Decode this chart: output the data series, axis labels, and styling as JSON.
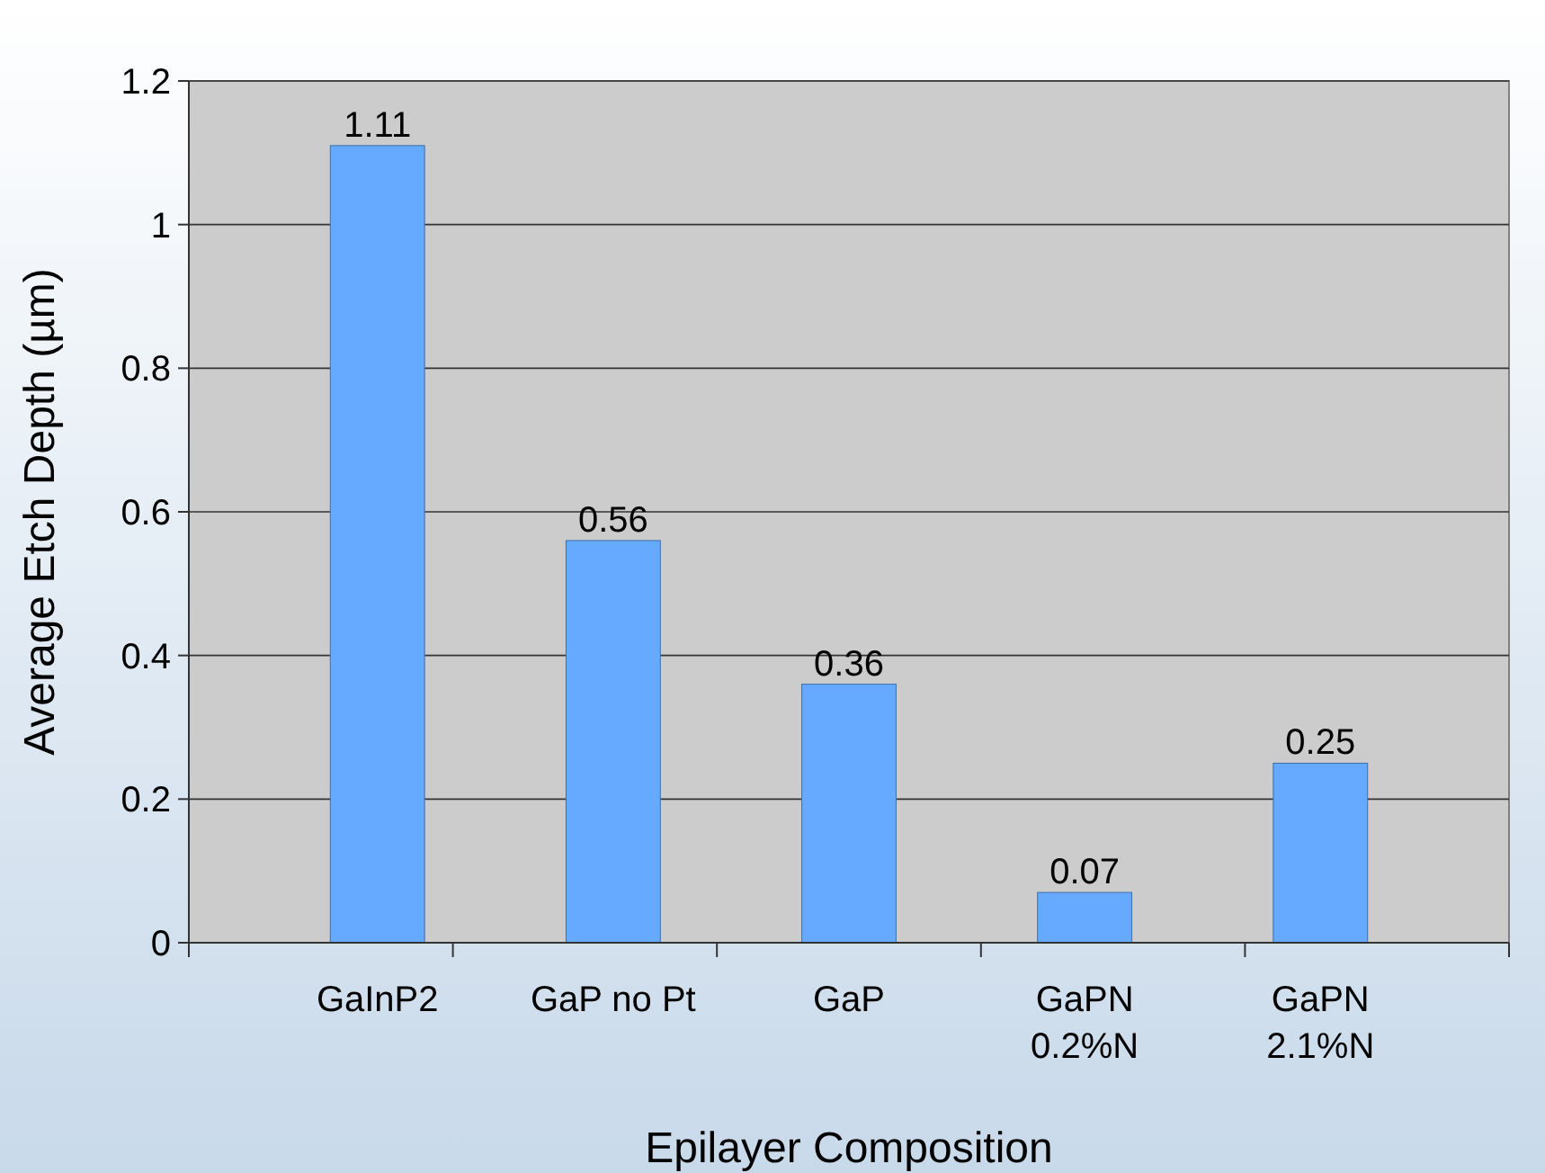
{
  "chart_data": {
    "type": "bar",
    "xlabel": "Epilayer Composition",
    "ylabel": "Average Etch Depth (µm)",
    "categories": [
      "GaInP2",
      "GaP no Pt",
      "GaP",
      "GaPN\n0.2%N",
      "GaPN\n2.1%N"
    ],
    "values": [
      1.11,
      0.56,
      0.36,
      0.07,
      0.25
    ],
    "color": "#66aaff",
    "ylim": [
      0,
      1.2
    ],
    "yticks": [
      0,
      0.2,
      0.4,
      0.6,
      0.8,
      1,
      1.2
    ],
    "grid": "y",
    "data_labels": true
  }
}
